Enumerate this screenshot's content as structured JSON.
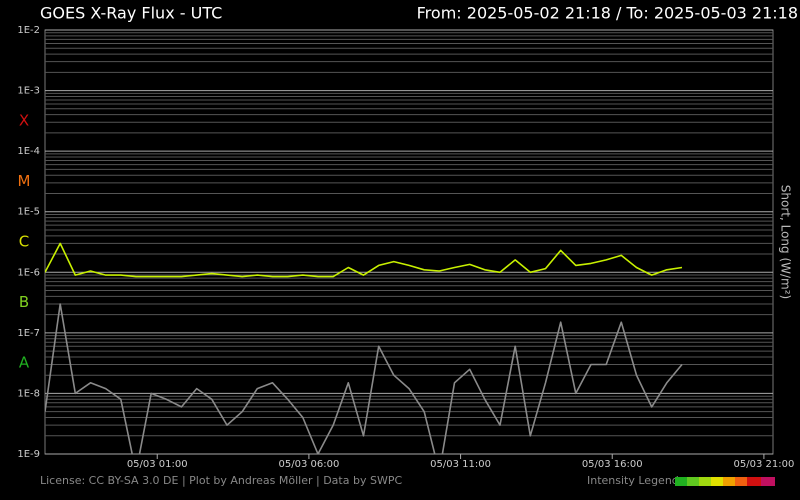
{
  "chart_data": {
    "type": "line",
    "title": "GOES X-Ray Flux - UTC",
    "range_text": "From: 2025-05-02 21:18  /  To: 2025-05-03 21:18",
    "y_label": "Short, Long (W/m²)",
    "log_scale": true,
    "grid": true,
    "minor_grid": true,
    "x": [
      "05/02 21:18",
      "05/02 21:48",
      "05/02 22:18",
      "05/02 22:48",
      "05/02 23:18",
      "05/02 23:48",
      "05/03 00:18",
      "05/03 00:48",
      "05/03 01:18",
      "05/03 01:48",
      "05/03 02:18",
      "05/03 02:48",
      "05/03 03:18",
      "05/03 03:48",
      "05/03 04:18",
      "05/03 04:48",
      "05/03 05:18",
      "05/03 05:48",
      "05/03 06:18",
      "05/03 06:48",
      "05/03 07:18",
      "05/03 07:48",
      "05/03 08:18",
      "05/03 08:48",
      "05/03 09:18",
      "05/03 09:48",
      "05/03 10:18",
      "05/03 10:48",
      "05/03 11:18",
      "05/03 11:48",
      "05/03 12:18",
      "05/03 12:48",
      "05/03 13:18",
      "05/03 13:48",
      "05/03 14:18",
      "05/03 14:48",
      "05/03 15:18",
      "05/03 15:48",
      "05/03 16:18",
      "05/03 16:48",
      "05/03 17:18",
      "05/03 17:48",
      "05/03 18:18"
    ],
    "series": [
      {
        "color": "#8a8a8a",
        "values": [
          5e-09,
          3e-07,
          1e-08,
          1.5e-08,
          1.2e-08,
          8e-09,
          5e-10,
          1e-08,
          8e-09,
          6e-09,
          1.2e-08,
          8e-09,
          3e-09,
          5e-09,
          1.2e-08,
          1.5e-08,
          8e-09,
          4e-09,
          1e-09,
          3e-09,
          1.5e-08,
          2e-09,
          6e-08,
          2e-08,
          1.2e-08,
          5e-09,
          5e-10,
          1.5e-08,
          2.5e-08,
          8e-09,
          3e-09,
          6e-08,
          2e-09,
          1.5e-08,
          1.5e-07,
          1e-08,
          3e-08,
          3e-08,
          1.5e-07,
          2e-08,
          6e-09,
          1.5e-08,
          3e-08
        ]
      },
      {
        "color": "#c8f000",
        "values": [
          1e-06,
          3e-06,
          9e-07,
          1.05e-06,
          9e-07,
          9e-07,
          8.5e-07,
          8.5e-07,
          8.5e-07,
          8.5e-07,
          9e-07,
          9.5e-07,
          9e-07,
          8.5e-07,
          9e-07,
          8.5e-07,
          8.5e-07,
          9e-07,
          8.5e-07,
          8.5e-07,
          1.2e-06,
          9e-07,
          1.3e-06,
          1.5e-06,
          1.3e-06,
          1.1e-06,
          1.05e-06,
          1.2e-06,
          1.35e-06,
          1.1e-06,
          1e-06,
          1.6e-06,
          1e-06,
          1.15e-06,
          2.3e-06,
          1.3e-06,
          1.4e-06,
          1.6e-06,
          1.9e-06,
          1.2e-06,
          9e-07,
          1.1e-06,
          1.2e-06
        ]
      }
    ],
    "xlim": [
      "05/02 21:18",
      "05/03 21:18"
    ],
    "xticks": [
      "05/03 01:00",
      "05/03 06:00",
      "05/03 11:00",
      "05/03 16:00",
      "05/03 21:00"
    ],
    "ylim": [
      1e-09,
      0.01
    ],
    "yticks": [
      {
        "value": 0.01,
        "label": "1E-2"
      },
      {
        "value": 0.001,
        "label": "1E-3"
      },
      {
        "value": 0.0001,
        "label": "1E-4"
      },
      {
        "value": 1e-05,
        "label": "1E-5"
      },
      {
        "value": 1e-06,
        "label": "1E-6"
      },
      {
        "value": 1e-07,
        "label": "1E-7"
      },
      {
        "value": 1e-08,
        "label": "1E-8"
      },
      {
        "value": 1e-09,
        "label": "1E-9"
      }
    ],
    "classes": [
      {
        "label": "X",
        "color": "#d01010"
      },
      {
        "label": "M",
        "color": "#f07010"
      },
      {
        "label": "C",
        "color": "#d8e000"
      },
      {
        "label": "B",
        "color": "#80d020"
      },
      {
        "label": "A",
        "color": "#20b020"
      }
    ],
    "license": "License: CC BY-SA 3.0 DE | Plot by Andreas Möller | Data by SWPC",
    "intensity_legend": "Intensity Legend"
  }
}
